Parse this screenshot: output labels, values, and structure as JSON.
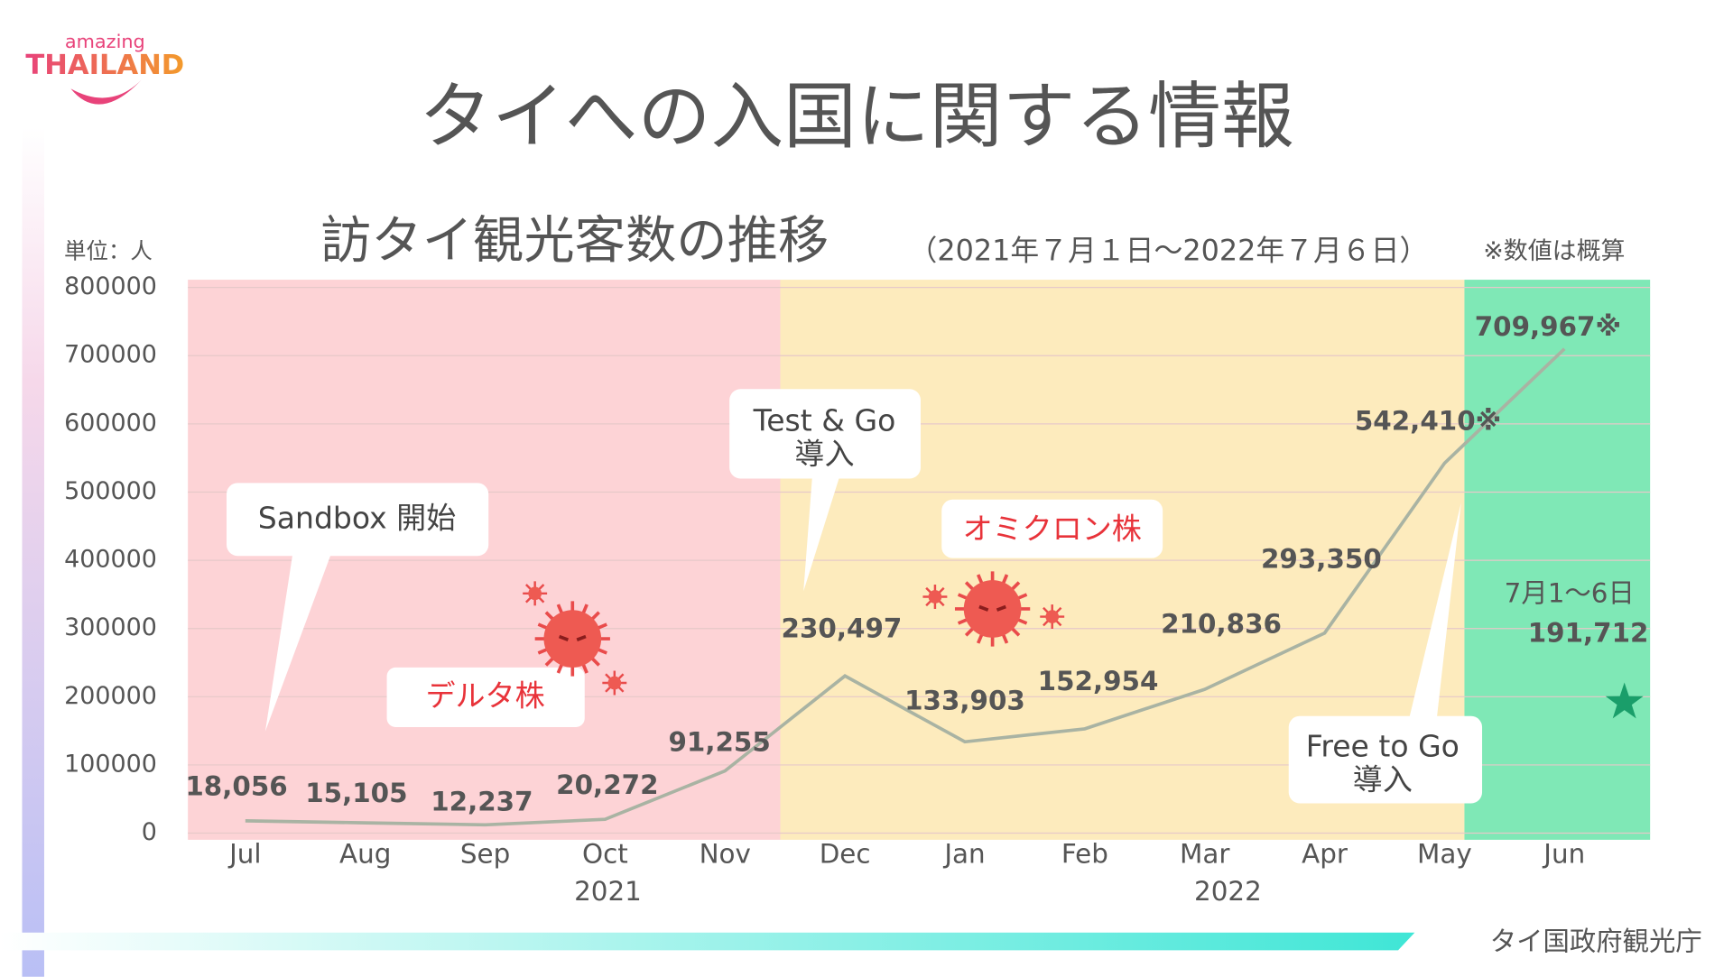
{
  "logo": {
    "tagline": "amazing",
    "name": "THAILAND"
  },
  "title": "タイへの入国に関する情報",
  "footer": "タイ国政府観光庁",
  "chart_data": {
    "type": "line",
    "title": "訪タイ観光客数の推移",
    "subtitle": "（2021年７月１日～2022年７月６日）",
    "note": "※数値は概算",
    "y_label": "単位：人",
    "categories": [
      "Jul",
      "Aug",
      "Sep",
      "Oct",
      "Nov",
      "Dec",
      "Jan",
      "Feb",
      "Mar",
      "Apr",
      "May",
      "Jun"
    ],
    "years": [
      "2021",
      "2022"
    ],
    "values": [
      18056,
      15105,
      12237,
      20272,
      91255,
      230497,
      133903,
      152954,
      210836,
      293350,
      542410,
      709967
    ],
    "value_labels": [
      "18,056",
      "15,105",
      "12,237",
      "20,272",
      "91,255",
      "230,497",
      "133,903",
      "152,954",
      "210,836",
      "293,350",
      "542,410※",
      "709,967※"
    ],
    "color": "#a9b3a3",
    "partial_month": {
      "label": "7月1～6日",
      "value": 191712,
      "value_label": "191,712",
      "color": "#1a9e6a"
    },
    "ylim": [
      0,
      800000
    ],
    "yticks": [
      0,
      100000,
      200000,
      300000,
      400000,
      500000,
      600000,
      700000,
      800000
    ],
    "grid": true,
    "annotations": [
      [
        "Sandbox 開始"
      ],
      [
        "デルタ株"
      ],
      [
        "Test & Go",
        "導入"
      ],
      [
        "オミクロン株"
      ],
      [
        "Free to Go",
        "導入"
      ]
    ]
  }
}
